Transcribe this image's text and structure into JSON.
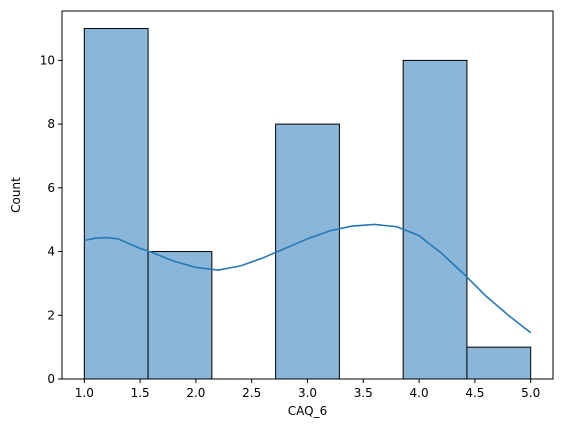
{
  "chart_data": {
    "type": "bar",
    "subtype": "histogram_with_kde",
    "title": "",
    "xlabel": "CAQ_6",
    "ylabel": "Count",
    "xlim": [
      0.8,
      5.2
    ],
    "ylim": [
      0,
      11.55
    ],
    "grid": false,
    "legend": "none",
    "bin_edges": [
      1.0,
      1.5714,
      2.1429,
      2.7143,
      3.2857,
      3.8571,
      4.4286,
      5.0
    ],
    "counts": [
      11,
      4,
      0,
      8,
      0,
      10,
      1
    ],
    "x_ticks": [
      1.0,
      1.5,
      2.0,
      2.5,
      3.0,
      3.5,
      4.0,
      4.5,
      5.0
    ],
    "x_tick_labels": [
      "1.0",
      "1.5",
      "2.0",
      "2.5",
      "3.0",
      "3.5",
      "4.0",
      "4.5",
      "5.0"
    ],
    "y_ticks": [
      0,
      2,
      4,
      6,
      8,
      10
    ],
    "y_tick_labels": [
      "0",
      "2",
      "4",
      "6",
      "8",
      "10"
    ],
    "kde": {
      "x": [
        1.0,
        1.1,
        1.2,
        1.3,
        1.4,
        1.5,
        1.6,
        1.8,
        2.0,
        2.2,
        2.4,
        2.6,
        2.8,
        3.0,
        3.2,
        3.4,
        3.6,
        3.8,
        4.0,
        4.2,
        4.4,
        4.6,
        4.8,
        5.0
      ],
      "y": [
        4.35,
        4.42,
        4.44,
        4.4,
        4.25,
        4.1,
        3.98,
        3.7,
        3.5,
        3.42,
        3.55,
        3.8,
        4.1,
        4.4,
        4.65,
        4.8,
        4.85,
        4.78,
        4.5,
        3.95,
        3.3,
        2.6,
        2.0,
        1.45
      ]
    },
    "colors": {
      "bar_fill": "#8ab6d9",
      "bar_edge": "#000000",
      "kde_line": "#2878b5",
      "axis": "#000000"
    }
  }
}
